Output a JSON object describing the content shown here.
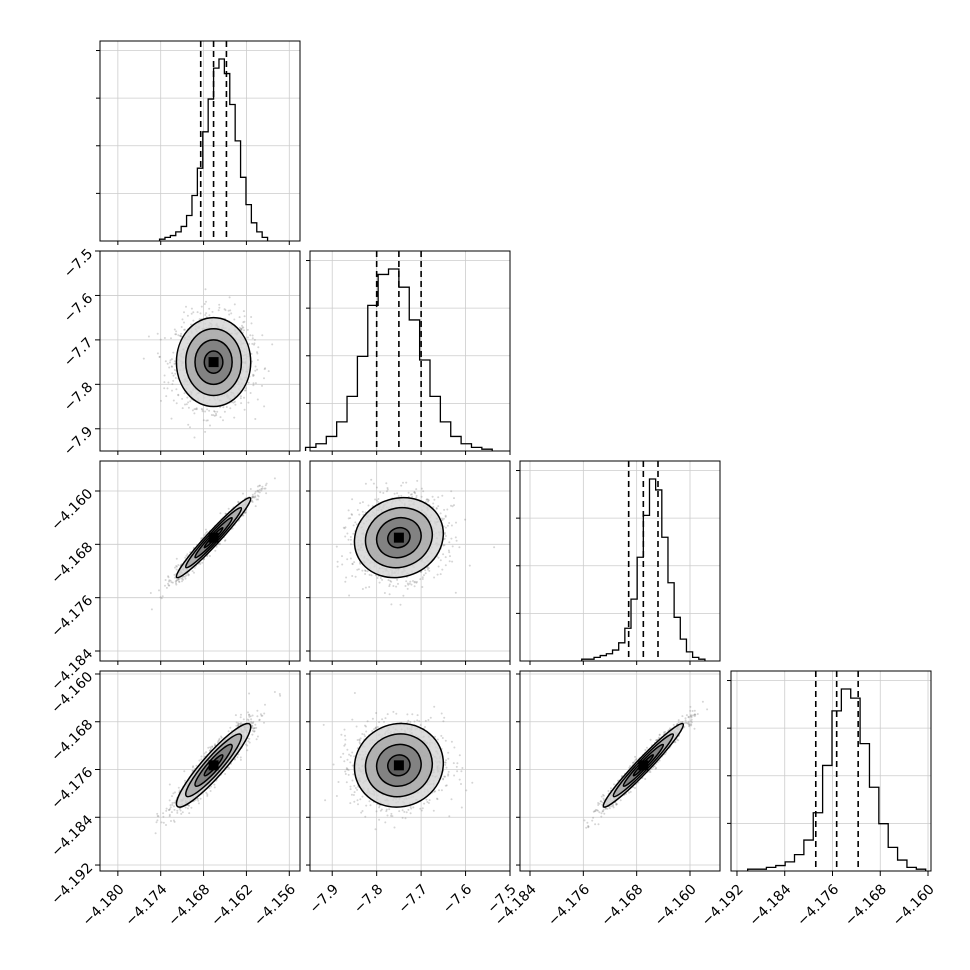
{
  "chart_data": {
    "type": "corner",
    "title": "",
    "dimensions": [
      {
        "ticks": [
          "−4.180",
          "−4.174",
          "−4.168",
          "−4.162",
          "−4.156"
        ],
        "lim": [
          -4.1825,
          -4.1545
        ],
        "quantiles": [
          -4.1684,
          -4.1666,
          -4.1648
        ]
      },
      {
        "ticks": [
          "−7.9",
          "−7.8",
          "−7.7",
          "−7.6",
          "−7.5"
        ],
        "lim": [
          -7.95,
          -7.5
        ],
        "quantiles": [
          -7.8,
          -7.75,
          -7.7
        ]
      },
      {
        "ticks": [
          "−4.184",
          "−4.176",
          "−4.168",
          "−4.160"
        ],
        "lim": [
          -4.1855,
          -4.1555
        ],
        "quantiles": [
          -4.1692,
          -4.167,
          -4.1648
        ]
      },
      {
        "ticks": [
          "−4.192",
          "−4.184",
          "−4.176",
          "−4.168",
          "−4.160"
        ],
        "lim": [
          -4.193,
          -4.1595
        ],
        "quantiles": [
          -4.1788,
          -4.1753,
          -4.1717
        ]
      }
    ],
    "panel_ylabels": {
      "1": {
        "ticks": [
          "−7.5",
          "−7.6",
          "−7.7",
          "−7.8",
          "−7.9"
        ]
      },
      "2": {
        "ticks": [
          "−4.160",
          "−4.168",
          "−4.176",
          "−4.184"
        ]
      },
      "3": {
        "ticks": [
          "−4.160",
          "−4.168",
          "−4.176",
          "−4.184",
          "−4.192"
        ]
      }
    },
    "histograms": [
      [
        1,
        2,
        3,
        5,
        8,
        14,
        25,
        40,
        60,
        78,
        95,
        100,
        92,
        75,
        55,
        35,
        20,
        10,
        5,
        2
      ],
      [
        2,
        4,
        8,
        16,
        30,
        52,
        80,
        97,
        100,
        90,
        72,
        50,
        30,
        16,
        8,
        4,
        2,
        1
      ],
      [
        1,
        1,
        2,
        3,
        4,
        6,
        10,
        18,
        34,
        57,
        80,
        100,
        94,
        68,
        43,
        24,
        12,
        5,
        2,
        1
      ],
      [
        1,
        1,
        2,
        3,
        5,
        9,
        17,
        32,
        58,
        88,
        100,
        95,
        70,
        46,
        26,
        13,
        6,
        2,
        1
      ]
    ],
    "pairs": [
      {
        "row": 1,
        "col": 0,
        "center": [
          -4.1666,
          -7.75
        ],
        "sigma": [
          0.0026,
          0.05
        ],
        "rho": 0.0
      },
      {
        "row": 2,
        "col": 0,
        "center": [
          -4.1666,
          -4.167
        ],
        "sigma": [
          0.0026,
          0.003
        ],
        "rho": 0.97
      },
      {
        "row": 2,
        "col": 1,
        "center": [
          -7.75,
          -4.167
        ],
        "sigma": [
          0.05,
          0.003
        ],
        "rho": 0.1
      },
      {
        "row": 3,
        "col": 0,
        "center": [
          -4.1666,
          -4.1753
        ],
        "sigma": [
          0.0026,
          0.0035
        ],
        "rho": 0.92
      },
      {
        "row": 3,
        "col": 1,
        "center": [
          -7.75,
          -4.1753
        ],
        "sigma": [
          0.05,
          0.0035
        ],
        "rho": 0.05
      },
      {
        "row": 3,
        "col": 2,
        "center": [
          -4.167,
          -4.1753
        ],
        "sigma": [
          0.003,
          0.0035
        ],
        "rho": 0.97
      }
    ],
    "contour_levels_sigma": [
      0.5,
      1.0,
      1.5,
      2.0
    ],
    "grid": true
  },
  "style": {
    "line_color": "#000000",
    "scatter_color": "#888888",
    "grid_color": "#cccccc"
  }
}
